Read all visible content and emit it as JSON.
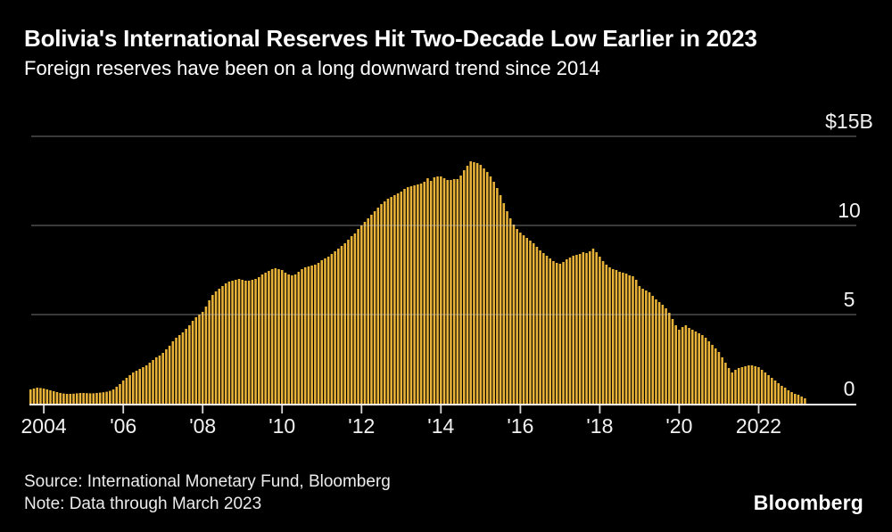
{
  "header": {
    "title": "Bolivia's International Reserves Hit Two-Decade Low Earlier in 2023",
    "subtitle": "Foreign reserves have been on a long downward trend since 2014"
  },
  "footer": {
    "source": "Source: International Monetary Fund, Bloomberg",
    "note": "Note: Data through March 2023",
    "brand": "Bloomberg"
  },
  "colors": {
    "background": "#000000",
    "bar": "#E9B239",
    "grid": "rgba(205,205,205,0.38)",
    "baseline": "#F2F2F2",
    "tick": "#D8D8D8",
    "label": "#F2F2F2",
    "text": "#FFFFFF"
  },
  "chart_data": {
    "type": "bar",
    "title": "Bolivia's International Reserves Hit Two-Decade Low Earlier in 2023",
    "subtitle": "Foreign reserves have been on a long downward trend since 2014",
    "unit": "USD billions",
    "frequency": "monthly",
    "x_start": "2003-09",
    "x_end": "2023-03",
    "ylim": [
      0,
      15
    ],
    "grid": true,
    "legend": "none",
    "y_ticks": [
      {
        "value": 15,
        "label": "$15B"
      },
      {
        "value": 10,
        "label": "10"
      },
      {
        "value": 5,
        "label": "5"
      },
      {
        "value": 0,
        "label": "0"
      }
    ],
    "x_ticks": [
      {
        "index": 4,
        "label": "2004"
      },
      {
        "index": 28,
        "label": "'06"
      },
      {
        "index": 52,
        "label": "'08"
      },
      {
        "index": 76,
        "label": "'10"
      },
      {
        "index": 100,
        "label": "'12"
      },
      {
        "index": 124,
        "label": "'14"
      },
      {
        "index": 148,
        "label": "'16"
      },
      {
        "index": 172,
        "label": "'18"
      },
      {
        "index": 196,
        "label": "'20"
      },
      {
        "index": 220,
        "label": "2022"
      }
    ],
    "values": [
      0.8,
      0.85,
      0.9,
      0.88,
      0.85,
      0.8,
      0.75,
      0.7,
      0.65,
      0.6,
      0.57,
      0.55,
      0.55,
      0.56,
      0.58,
      0.6,
      0.6,
      0.59,
      0.58,
      0.58,
      0.6,
      0.62,
      0.64,
      0.67,
      0.72,
      0.8,
      0.95,
      1.1,
      1.3,
      1.45,
      1.6,
      1.75,
      1.85,
      1.95,
      2.05,
      2.15,
      2.3,
      2.45,
      2.6,
      2.7,
      2.85,
      3.05,
      3.25,
      3.5,
      3.7,
      3.85,
      4.0,
      4.2,
      4.4,
      4.65,
      4.85,
      5.0,
      5.15,
      5.45,
      5.8,
      6.1,
      6.3,
      6.45,
      6.6,
      6.75,
      6.85,
      6.9,
      6.95,
      7.0,
      6.95,
      6.9,
      6.9,
      6.95,
      7.0,
      7.1,
      7.25,
      7.35,
      7.45,
      7.55,
      7.6,
      7.55,
      7.5,
      7.35,
      7.25,
      7.2,
      7.25,
      7.4,
      7.55,
      7.65,
      7.7,
      7.75,
      7.8,
      7.9,
      8.05,
      8.15,
      8.25,
      8.4,
      8.55,
      8.7,
      8.85,
      9.0,
      9.2,
      9.4,
      9.55,
      9.8,
      10.0,
      10.2,
      10.4,
      10.6,
      10.8,
      11.0,
      11.2,
      11.35,
      11.5,
      11.6,
      11.7,
      11.8,
      11.9,
      12.05,
      12.15,
      12.2,
      12.25,
      12.3,
      12.35,
      12.45,
      12.65,
      12.5,
      12.7,
      12.75,
      12.75,
      12.65,
      12.55,
      12.55,
      12.6,
      12.6,
      12.8,
      13.1,
      13.35,
      13.6,
      13.55,
      13.5,
      13.4,
      13.2,
      13.0,
      12.75,
      12.45,
      12.1,
      11.7,
      11.25,
      10.8,
      10.4,
      10.05,
      9.8,
      9.6,
      9.45,
      9.3,
      9.15,
      9.0,
      8.8,
      8.6,
      8.45,
      8.3,
      8.15,
      8.0,
      7.9,
      7.85,
      7.95,
      8.1,
      8.2,
      8.3,
      8.35,
      8.4,
      8.5,
      8.45,
      8.55,
      8.7,
      8.5,
      8.25,
      8.0,
      7.8,
      7.65,
      7.55,
      7.5,
      7.4,
      7.35,
      7.3,
      7.2,
      7.15,
      6.95,
      6.6,
      6.45,
      6.35,
      6.25,
      6.05,
      5.85,
      5.7,
      5.55,
      5.35,
      5.1,
      4.75,
      4.4,
      4.15,
      4.3,
      4.4,
      4.25,
      4.15,
      4.05,
      3.95,
      3.85,
      3.7,
      3.5,
      3.3,
      3.1,
      2.9,
      2.6,
      2.3,
      2.0,
      1.75,
      1.9,
      2.0,
      2.05,
      2.1,
      2.15,
      2.15,
      2.1,
      2.05,
      1.9,
      1.75,
      1.6,
      1.45,
      1.3,
      1.15,
      1.0,
      0.9,
      0.75,
      0.65,
      0.55,
      0.5,
      0.4,
      0.3
    ]
  }
}
